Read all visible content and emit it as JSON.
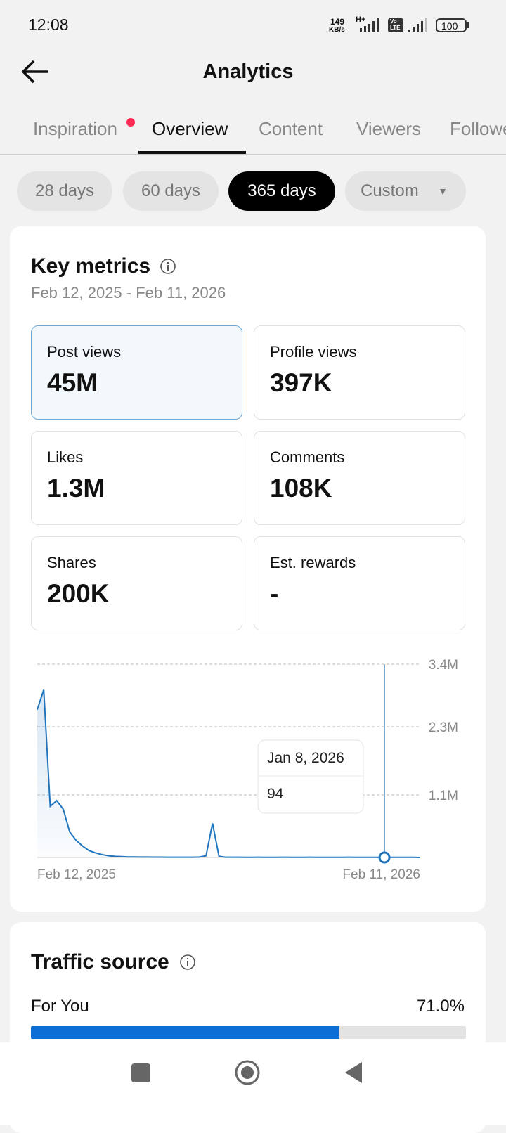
{
  "status": {
    "time": "12:08",
    "speed": "149",
    "speed_unit": "KB/s",
    "network": "H+",
    "volte": "Vo",
    "lte": "LTE",
    "battery": "100"
  },
  "header": {
    "title": "Analytics"
  },
  "tabs": [
    "Inspiration",
    "Overview",
    "Content",
    "Viewers",
    "Followers"
  ],
  "ranges": [
    "28 days",
    "60 days",
    "365 days",
    "Custom"
  ],
  "key_metrics": {
    "title": "Key metrics",
    "date_range": "Feb 12, 2025 - Feb 11, 2026",
    "cards": [
      {
        "label": "Post views",
        "value": "45M"
      },
      {
        "label": "Profile views",
        "value": "397K"
      },
      {
        "label": "Likes",
        "value": "1.3M"
      },
      {
        "label": "Comments",
        "value": "108K"
      },
      {
        "label": "Shares",
        "value": "200K"
      },
      {
        "label": "Est. rewards",
        "value": "-"
      }
    ]
  },
  "chart_data": {
    "type": "line",
    "color": "#1f74bd",
    "categories": [
      "Feb 12, 2025",
      null,
      null,
      null,
      null,
      null,
      null,
      null,
      null,
      null,
      null,
      null,
      null,
      null,
      null,
      null,
      null,
      null,
      null,
      null,
      null,
      null,
      null,
      null,
      null,
      null,
      null,
      null,
      null,
      null,
      null,
      null,
      null,
      null,
      null,
      null,
      null,
      null,
      null,
      null,
      null,
      null,
      null,
      null,
      null,
      null,
      null,
      null,
      null,
      null,
      null,
      null,
      null,
      null,
      null,
      null,
      null,
      null,
      null,
      "Feb 11, 2026"
    ],
    "values": [
      2600000,
      2950000,
      900000,
      1000000,
      850000,
      450000,
      300000,
      200000,
      120000,
      80000,
      50000,
      30000,
      20000,
      15000,
      10000,
      10000,
      8000,
      8000,
      6000,
      6000,
      5000,
      5000,
      5000,
      5000,
      5000,
      8000,
      30000,
      600000,
      20000,
      5000,
      4000,
      4000,
      3000,
      3000,
      4000,
      3000,
      3000,
      3000,
      4000,
      3000,
      3000,
      3000,
      4000,
      3000,
      3000,
      3000,
      3000,
      3000,
      4000,
      3000,
      3000,
      3000,
      3000,
      3000,
      3000,
      3000,
      3000,
      3000,
      3000,
      94
    ],
    "ylim": [
      0,
      3400000
    ],
    "yticks": [
      {
        "value": 1100000,
        "label": "1.1M"
      },
      {
        "value": 2300000,
        "label": "2.3M"
      },
      {
        "value": 3400000,
        "label": "3.4M"
      }
    ],
    "grid": true,
    "tooltip": {
      "date": "Jan 8, 2026",
      "value": 94
    }
  },
  "traffic": {
    "title": "Traffic source",
    "sources": [
      {
        "name": "For You",
        "value": 71,
        "value_label": "71.0%"
      }
    ]
  }
}
